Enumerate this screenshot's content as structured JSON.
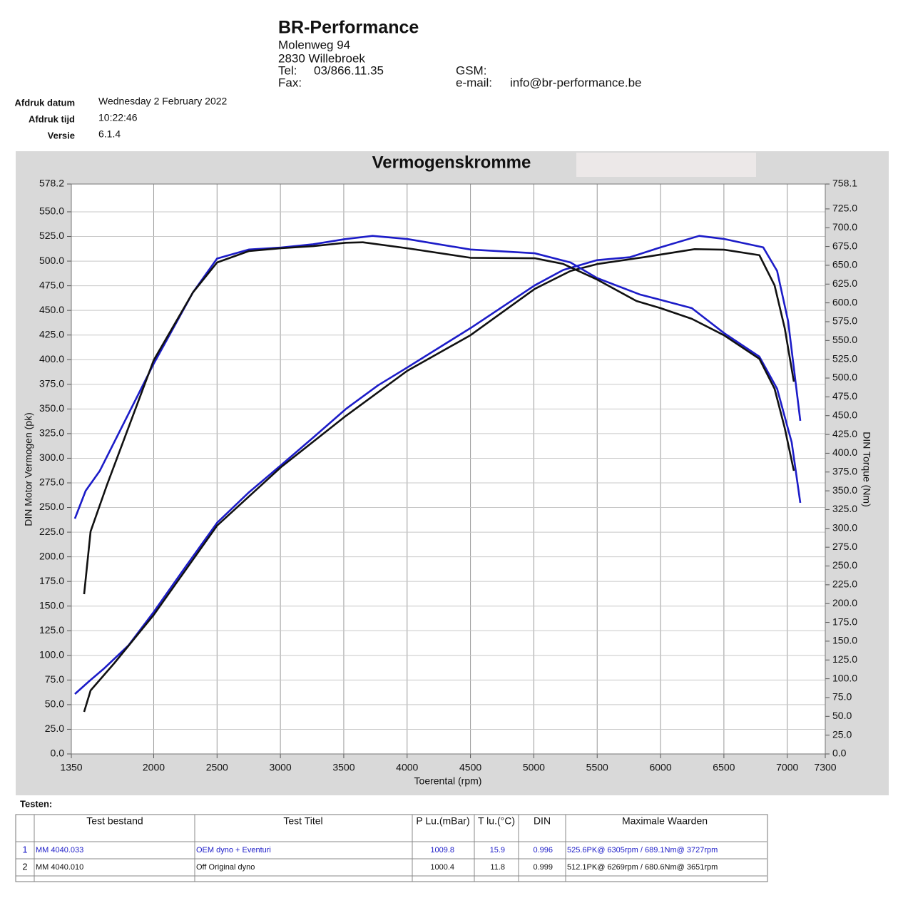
{
  "header": {
    "title": "BR-Performance",
    "address": [
      "Molenweg 94",
      "2830 Willebroek"
    ],
    "tel_label": "Tel:",
    "tel": "03/866.11.35",
    "gsm_label": "GSM:",
    "fax_label": "Fax:",
    "email_label": "e-mail:",
    "email": "info@br-performance.be"
  },
  "print_info": [
    {
      "label": "Afdruk datum",
      "value": "Wednesday 2 February 2022"
    },
    {
      "label": "Afdruk tijd",
      "value": "10:22:46"
    },
    {
      "label": "Versie",
      "value": "6.1.4"
    }
  ],
  "chart_data": {
    "type": "line",
    "title": "Vermogenskromme",
    "x_label": "Toerental (rpm)",
    "y_label": "DIN Motor Vermogen (pk)",
    "y2_label": "DIN Torque (Nm)",
    "xlim": [
      1350,
      7300
    ],
    "xticks": [
      1350,
      2000,
      2500,
      3000,
      3500,
      4000,
      4500,
      5000,
      5500,
      6000,
      6500,
      7000,
      7300
    ],
    "ylim": [
      0,
      578.2
    ],
    "yticks": [
      578.2,
      {
        "value": 550,
        "label": "550.0"
      },
      {
        "value": 525,
        "label": "525.0"
      },
      {
        "value": 500,
        "label": "500.0"
      },
      {
        "value": 475,
        "label": "475.0"
      },
      {
        "value": 450,
        "label": "450.0"
      },
      {
        "value": 425,
        "label": "425.0"
      },
      {
        "value": 400,
        "label": "400.0"
      },
      {
        "value": 375,
        "label": "375.0"
      },
      {
        "value": 350,
        "label": "350.0"
      },
      {
        "value": 325,
        "label": "325.0"
      },
      {
        "value": 300,
        "label": "300.0"
      },
      {
        "value": 275,
        "label": "275.0"
      },
      {
        "value": 250,
        "label": "250.0"
      },
      {
        "value": 225,
        "label": "225.0"
      },
      {
        "value": 200,
        "label": "200.0"
      },
      {
        "value": 175,
        "label": "175.0"
      },
      {
        "value": 150,
        "label": "150.0"
      },
      {
        "value": 125,
        "label": "125.0"
      },
      {
        "value": 100,
        "label": "100.0"
      },
      {
        "value": 75,
        "label": "75.0"
      },
      {
        "value": 50,
        "label": "50.0"
      },
      {
        "value": 25,
        "label": "25.0"
      },
      {
        "value": 0,
        "label": "0.0"
      }
    ],
    "y2lim": [
      0,
      758.1
    ],
    "y2ticks": [
      758.1,
      {
        "value": 725,
        "label": "725.0"
      },
      {
        "value": 700,
        "label": "700.0"
      },
      {
        "value": 675,
        "label": "675.0"
      },
      {
        "value": 650,
        "label": "650.0"
      },
      {
        "value": 625,
        "label": "625.0"
      },
      {
        "value": 600,
        "label": "600.0"
      },
      {
        "value": 575,
        "label": "575.0"
      },
      {
        "value": 550,
        "label": "550.0"
      },
      {
        "value": 525,
        "label": "525.0"
      },
      {
        "value": 500,
        "label": "500.0"
      },
      {
        "value": 475,
        "label": "475.0"
      },
      {
        "value": 450,
        "label": "450.0"
      },
      {
        "value": 425,
        "label": "425.0"
      },
      {
        "value": 400,
        "label": "400.0"
      },
      {
        "value": 375,
        "label": "375.0"
      },
      {
        "value": 350,
        "label": "350.0"
      },
      {
        "value": 325,
        "label": "325.0"
      },
      {
        "value": 300,
        "label": "300.0"
      },
      {
        "value": 275,
        "label": "275.0"
      },
      {
        "value": 250,
        "label": "250.0"
      },
      {
        "value": 225,
        "label": "225.0"
      },
      {
        "value": 200,
        "label": "200.0"
      },
      {
        "value": 175,
        "label": "175.0"
      },
      {
        "value": 150,
        "label": "150.0"
      },
      {
        "value": 125,
        "label": "125.0"
      },
      {
        "value": 100,
        "label": "100.0"
      },
      {
        "value": 75,
        "label": "75.0"
      },
      {
        "value": 50,
        "label": "50.0"
      },
      {
        "value": 25,
        "label": "25.0"
      },
      {
        "value": 0,
        "label": "0.0"
      }
    ],
    "grid": true,
    "series": [
      {
        "color": "#1c1cc8",
        "axis": "y",
        "x": [
          1378,
          1491,
          1603,
          1800,
          2000,
          2250,
          2500,
          2753,
          3005,
          3259,
          3517,
          3771,
          4000,
          4500,
          5007,
          5232,
          5500,
          5760,
          6000,
          6305,
          6500,
          6810,
          6920,
          7007,
          7103
        ],
        "values": [
          60.8,
          73.8,
          86.1,
          110,
          144,
          189.6,
          234.5,
          265.6,
          293,
          321,
          350,
          374,
          392,
          432,
          475.4,
          491,
          501,
          504,
          514,
          525.6,
          522.5,
          514,
          490,
          439,
          338
        ]
      },
      {
        "color": "#111111",
        "axis": "y",
        "x": [
          1451,
          1502,
          1688,
          2000,
          2500,
          3005,
          3517,
          4000,
          4500,
          5007,
          5290,
          5500,
          5870,
          6269,
          6500,
          6780,
          6900,
          6980,
          7052
        ],
        "values": [
          42.7,
          64.4,
          91.9,
          141,
          231.6,
          291,
          343,
          388.6,
          424.8,
          471.8,
          490,
          497,
          504,
          512.1,
          511.6,
          506,
          475.4,
          432,
          377.7
        ]
      },
      {
        "color": "#1c1cc8",
        "axis": "y2",
        "x": [
          1378,
          1463,
          1575,
          2000,
          2310,
          2500,
          2753,
          3005,
          3259,
          3517,
          3727,
          4000,
          4500,
          5007,
          5290,
          5500,
          5840,
          6000,
          6247,
          6500,
          6780,
          6920,
          7035,
          7103
        ],
        "values": [
          313,
          350,
          376.7,
          519,
          614,
          659,
          671,
          673.6,
          678,
          685,
          689.1,
          685,
          671,
          666,
          653.7,
          633,
          611,
          604,
          593,
          560,
          528.5,
          485.8,
          414.6,
          334
        ]
      },
      {
        "color": "#111111",
        "axis": "y2",
        "x": [
          1451,
          1502,
          1631,
          2000,
          2310,
          2500,
          2753,
          3005,
          3259,
          3517,
          3651,
          4000,
          4500,
          5007,
          5232,
          5500,
          5810,
          6000,
          6247,
          6500,
          6780,
          6900,
          6980,
          7052
        ],
        "values": [
          212.5,
          296,
          357.7,
          523.7,
          614,
          653.7,
          669,
          672.7,
          675.5,
          680,
          680.6,
          672.7,
          660,
          659.4,
          651.8,
          631,
          602.5,
          593,
          578.8,
          557,
          525.6,
          485.8,
          433.6,
          376.7
        ]
      }
    ]
  },
  "tests": {
    "title": "Testen:",
    "columns": [
      "Test bestand",
      "Test Titel",
      "P Lu.(mBar)",
      "T lu.(°C)",
      "DIN",
      "Maximale Waarden"
    ],
    "rows": [
      {
        "color": "#1c1cc8",
        "cells": [
          1,
          "MM 4040.033",
          "OEM dyno + Eventuri",
          1009.8,
          15.9,
          0.996,
          "525.6PK@ 6305rpm / 689.1Nm@ 3727rpm"
        ]
      },
      {
        "color": "#111111",
        "cells": [
          2,
          "MM 4040.010",
          "Off Original dyno",
          1000.4,
          11.8,
          0.999,
          "512.1PK@ 6269rpm / 680.6Nm@ 3651rpm"
        ]
      }
    ]
  }
}
